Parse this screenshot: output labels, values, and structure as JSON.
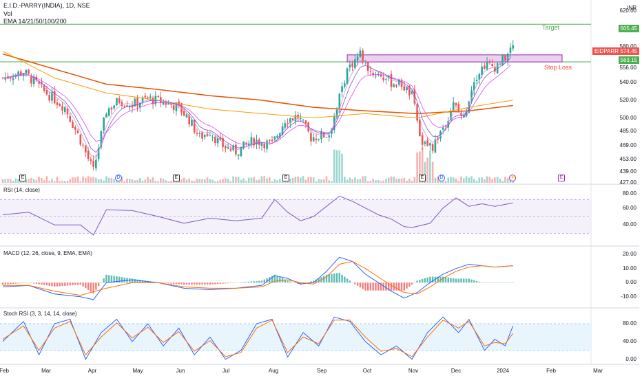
{
  "header": {
    "symbol": "E.I.D.-PARRY(INDIA), 1D, NSE",
    "vol_label": "Vol",
    "ema_label": "EMA 14/21/50/100/200",
    "currency": "INR"
  },
  "colors": {
    "up": "#26a69a",
    "down": "#ef5350",
    "target": "#4caf50",
    "stop": "#f44336",
    "zone_fill": "#e1bee7",
    "zone_border": "#9c27b0",
    "rsi_line": "#7e57c2",
    "macd_line": "#2962ff",
    "signal_line": "#ff6d00",
    "stoch_k": "#2962ff",
    "stoch_d": "#ff6d00",
    "stoch_band": "#e3f2fd"
  },
  "price_panel": {
    "ticks": [
      "620.00",
      "600.00",
      "580.00",
      "556.00",
      "540.00",
      "520.00",
      "500.00",
      "485.00",
      "469.00",
      "453.00",
      "439.00",
      "427.00"
    ],
    "target_label": "Target",
    "target_price": "605.45",
    "stop_label": "Stop Loss",
    "stop_price": "563.15",
    "ticker_tag": "EIDPARRY",
    "last_price": "574.45"
  },
  "rsi_panel": {
    "label": "RSI (14, close)",
    "ticks": [
      "80.00",
      "60.00",
      "40.00"
    ]
  },
  "macd_panel": {
    "label": "MACD (12, 26, close, 9, EMA, EMA)",
    "ticks": [
      "20.00",
      "10.00",
      "0.00",
      "-10.00"
    ]
  },
  "stoch_panel": {
    "label": "Stoch RSI (3, 3, 14, 14, close)",
    "ticks": [
      "80.00",
      "40.00",
      "0.00"
    ]
  },
  "events": [
    {
      "kind": "E",
      "label": "E"
    },
    {
      "kind": "D",
      "label": "D"
    },
    {
      "kind": "E",
      "label": "E"
    },
    {
      "kind": "E",
      "label": "E"
    },
    {
      "kind": "E",
      "label": "E"
    },
    {
      "kind": "D",
      "label": "D"
    },
    {
      "kind": "S",
      "label": "⚡"
    },
    {
      "kind": "F",
      "label": "E"
    }
  ],
  "chart_data": {
    "type": "candlestick",
    "title": "E.I.D.-PARRY(INDIA), 1D, NSE",
    "x_labels": [
      "Feb",
      "Mar",
      "Apr",
      "May",
      "Jun",
      "Jul",
      "Aug",
      "Sep",
      "Oct",
      "Nov",
      "Dec",
      "2024",
      "Feb",
      "Mar"
    ],
    "ylim": [
      427,
      625
    ],
    "price_path": [
      [
        0,
        545
      ],
      [
        8,
        552
      ],
      [
        16,
        530
      ],
      [
        24,
        512
      ],
      [
        30,
        475
      ],
      [
        35,
        440
      ],
      [
        40,
        508
      ],
      [
        45,
        520
      ],
      [
        50,
        515
      ],
      [
        56,
        522
      ],
      [
        62,
        518
      ],
      [
        68,
        512
      ],
      [
        72,
        498
      ],
      [
        76,
        478
      ],
      [
        80,
        485
      ],
      [
        84,
        470
      ],
      [
        90,
        462
      ],
      [
        97,
        475
      ],
      [
        104,
        470
      ],
      [
        109,
        498
      ],
      [
        114,
        502
      ],
      [
        119,
        478
      ],
      [
        126,
        482
      ],
      [
        133,
        555
      ],
      [
        138,
        572
      ],
      [
        142,
        552
      ],
      [
        146,
        548
      ],
      [
        150,
        540
      ],
      [
        154,
        538
      ],
      [
        158,
        525
      ],
      [
        162,
        470
      ],
      [
        166,
        468
      ],
      [
        170,
        490
      ],
      [
        174,
        515
      ],
      [
        178,
        500
      ],
      [
        182,
        545
      ],
      [
        186,
        560
      ],
      [
        190,
        558
      ],
      [
        194,
        568
      ],
      [
        197,
        580
      ]
    ],
    "ema_200": [
      [
        0,
        572
      ],
      [
        20,
        555
      ],
      [
        40,
        538
      ],
      [
        60,
        532
      ],
      [
        80,
        525
      ],
      [
        100,
        520
      ],
      [
        120,
        512
      ],
      [
        140,
        508
      ],
      [
        160,
        505
      ],
      [
        180,
        508
      ],
      [
        197,
        514
      ]
    ],
    "ema_100": [
      [
        0,
        575
      ],
      [
        20,
        545
      ],
      [
        40,
        528
      ],
      [
        60,
        520
      ],
      [
        80,
        510
      ],
      [
        100,
        505
      ],
      [
        120,
        500
      ],
      [
        140,
        505
      ],
      [
        160,
        500
      ],
      [
        180,
        512
      ],
      [
        197,
        520
      ]
    ],
    "rsi": [
      [
        0,
        52
      ],
      [
        10,
        55
      ],
      [
        20,
        40
      ],
      [
        30,
        40
      ],
      [
        35,
        28
      ],
      [
        40,
        58
      ],
      [
        50,
        57
      ],
      [
        60,
        50
      ],
      [
        70,
        42
      ],
      [
        80,
        48
      ],
      [
        90,
        45
      ],
      [
        100,
        48
      ],
      [
        105,
        70
      ],
      [
        110,
        55
      ],
      [
        115,
        45
      ],
      [
        120,
        50
      ],
      [
        125,
        62
      ],
      [
        130,
        74
      ],
      [
        135,
        68
      ],
      [
        140,
        60
      ],
      [
        145,
        52
      ],
      [
        150,
        47
      ],
      [
        155,
        38
      ],
      [
        158,
        37
      ],
      [
        165,
        42
      ],
      [
        170,
        60
      ],
      [
        175,
        72
      ],
      [
        180,
        62
      ],
      [
        185,
        65
      ],
      [
        190,
        62
      ],
      [
        197,
        66
      ]
    ],
    "macd": [
      [
        0,
        -3
      ],
      [
        10,
        -2
      ],
      [
        20,
        -8
      ],
      [
        30,
        -10
      ],
      [
        35,
        -12
      ],
      [
        40,
        0
      ],
      [
        50,
        2
      ],
      [
        60,
        0
      ],
      [
        70,
        -4
      ],
      [
        80,
        -5
      ],
      [
        90,
        -4
      ],
      [
        100,
        -2
      ],
      [
        105,
        5
      ],
      [
        110,
        3
      ],
      [
        115,
        -1
      ],
      [
        120,
        0
      ],
      [
        125,
        8
      ],
      [
        130,
        18
      ],
      [
        135,
        15
      ],
      [
        140,
        6
      ],
      [
        145,
        0
      ],
      [
        150,
        -6
      ],
      [
        155,
        -11
      ],
      [
        160,
        -7
      ],
      [
        165,
        0
      ],
      [
        170,
        6
      ],
      [
        175,
        10
      ],
      [
        180,
        13
      ],
      [
        185,
        12
      ],
      [
        190,
        11
      ],
      [
        197,
        12
      ]
    ],
    "signal": [
      [
        0,
        -2
      ],
      [
        10,
        -2
      ],
      [
        20,
        -6
      ],
      [
        30,
        -9
      ],
      [
        40,
        -4
      ],
      [
        50,
        0
      ],
      [
        60,
        0
      ],
      [
        70,
        -3
      ],
      [
        80,
        -4
      ],
      [
        90,
        -4
      ],
      [
        100,
        -3
      ],
      [
        105,
        1
      ],
      [
        110,
        2
      ],
      [
        115,
        0
      ],
      [
        120,
        -1
      ],
      [
        125,
        4
      ],
      [
        130,
        13
      ],
      [
        135,
        15
      ],
      [
        140,
        10
      ],
      [
        145,
        4
      ],
      [
        150,
        -2
      ],
      [
        155,
        -7
      ],
      [
        160,
        -8
      ],
      [
        165,
        -3
      ],
      [
        170,
        3
      ],
      [
        175,
        8
      ],
      [
        180,
        11
      ],
      [
        185,
        12
      ],
      [
        190,
        11
      ],
      [
        197,
        12
      ]
    ],
    "stoch_k": [
      [
        0,
        40
      ],
      [
        8,
        85
      ],
      [
        14,
        10
      ],
      [
        20,
        80
      ],
      [
        26,
        90
      ],
      [
        32,
        0
      ],
      [
        38,
        60
      ],
      [
        44,
        90
      ],
      [
        50,
        40
      ],
      [
        56,
        80
      ],
      [
        62,
        30
      ],
      [
        68,
        70
      ],
      [
        74,
        10
      ],
      [
        80,
        50
      ],
      [
        86,
        0
      ],
      [
        92,
        20
      ],
      [
        98,
        80
      ],
      [
        104,
        90
      ],
      [
        110,
        5
      ],
      [
        116,
        60
      ],
      [
        122,
        30
      ],
      [
        128,
        95
      ],
      [
        134,
        85
      ],
      [
        140,
        40
      ],
      [
        146,
        10
      ],
      [
        152,
        30
      ],
      [
        158,
        0
      ],
      [
        164,
        60
      ],
      [
        170,
        95
      ],
      [
        176,
        60
      ],
      [
        180,
        90
      ],
      [
        186,
        20
      ],
      [
        190,
        45
      ],
      [
        194,
        30
      ],
      [
        197,
        75
      ]
    ],
    "stoch_d": [
      [
        0,
        45
      ],
      [
        8,
        75
      ],
      [
        14,
        20
      ],
      [
        20,
        70
      ],
      [
        26,
        85
      ],
      [
        32,
        10
      ],
      [
        38,
        50
      ],
      [
        44,
        82
      ],
      [
        50,
        48
      ],
      [
        56,
        72
      ],
      [
        62,
        38
      ],
      [
        68,
        62
      ],
      [
        74,
        18
      ],
      [
        80,
        42
      ],
      [
        86,
        6
      ],
      [
        92,
        15
      ],
      [
        98,
        70
      ],
      [
        104,
        88
      ],
      [
        110,
        15
      ],
      [
        116,
        50
      ],
      [
        122,
        35
      ],
      [
        128,
        88
      ],
      [
        134,
        88
      ],
      [
        140,
        50
      ],
      [
        146,
        18
      ],
      [
        152,
        24
      ],
      [
        158,
        6
      ],
      [
        164,
        50
      ],
      [
        170,
        88
      ],
      [
        176,
        70
      ],
      [
        180,
        85
      ],
      [
        186,
        30
      ],
      [
        190,
        38
      ],
      [
        194,
        35
      ],
      [
        197,
        58
      ]
    ],
    "rsi_ticks": [
      80,
      60,
      40
    ],
    "macd_ticks": [
      20,
      10,
      0,
      -10
    ],
    "stoch_ticks": [
      80,
      40,
      0
    ]
  }
}
